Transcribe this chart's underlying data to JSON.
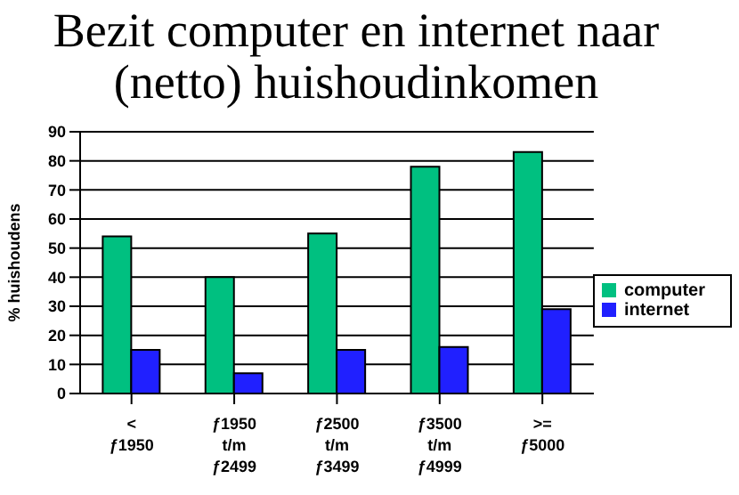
{
  "chart_data": {
    "type": "bar",
    "title": "Bezit computer en internet naar (netto) huishoudinkomen",
    "ylabel": "% huishoudens",
    "categories": [
      "< ƒ1950",
      "ƒ1950 t/m ƒ2499",
      "ƒ2500 t/m ƒ3499",
      "ƒ3500 t/m ƒ4999",
      ">= ƒ5000"
    ],
    "series": [
      {
        "name": "computer",
        "color": "#00c080",
        "values": [
          54,
          40,
          55,
          78,
          83
        ]
      },
      {
        "name": "internet",
        "color": "#2020ff",
        "values": [
          15,
          7,
          15,
          16,
          29
        ]
      }
    ],
    "ylim": [
      0,
      90
    ],
    "yticks": [
      0,
      10,
      20,
      30,
      40,
      50,
      60,
      70,
      80,
      90
    ],
    "grid": "y",
    "legend": "right"
  }
}
